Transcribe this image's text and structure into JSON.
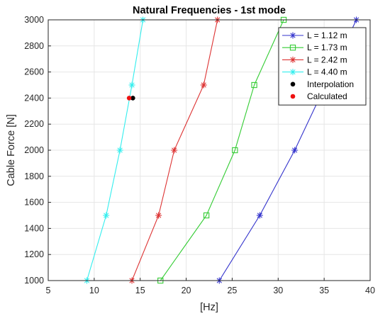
{
  "chart_data": {
    "type": "line",
    "title": "Natural Frequencies - 1st mode",
    "xlabel": "[Hz]",
    "ylabel": "Cable Force [N]",
    "xlim": [
      5,
      40
    ],
    "ylim": [
      1000,
      3000
    ],
    "xticks": [
      5,
      10,
      15,
      20,
      25,
      30,
      35,
      40
    ],
    "yticks": [
      1000,
      1200,
      1400,
      1600,
      1800,
      2000,
      2200,
      2400,
      2600,
      2800,
      3000
    ],
    "grid": true,
    "legend_position": "top-right",
    "series": [
      {
        "name": "L = 1.12 m",
        "color": "#3333cc",
        "marker": "asterisk",
        "x": [
          23.6,
          28.0,
          31.8,
          38.5
        ],
        "y": [
          1000,
          1500,
          2000,
          3000
        ]
      },
      {
        "name": "L = 1.73 m",
        "color": "#33cc33",
        "marker": "square",
        "x": [
          17.2,
          22.2,
          25.3,
          27.4,
          30.6
        ],
        "y": [
          1000,
          1500,
          2000,
          2500,
          3000
        ]
      },
      {
        "name": "L = 2.42 m",
        "color": "#dd3333",
        "marker": "asterisk",
        "x": [
          14.1,
          17.0,
          18.7,
          21.9,
          23.4
        ],
        "y": [
          1000,
          1500,
          2000,
          2500,
          3000
        ]
      },
      {
        "name": "L = 4.40 m",
        "color": "#33eeee",
        "marker": "asterisk",
        "x": [
          9.2,
          11.3,
          12.8,
          14.1,
          15.3
        ],
        "y": [
          1000,
          1500,
          2000,
          2500,
          3000
        ]
      },
      {
        "name": "Interpolation",
        "color": "#000000",
        "marker": "dot",
        "x": [
          14.2
        ],
        "y": [
          2400
        ]
      },
      {
        "name": "Calculated",
        "color": "#ee1111",
        "marker": "dot",
        "x": [
          13.8
        ],
        "y": [
          2400
        ]
      }
    ]
  }
}
